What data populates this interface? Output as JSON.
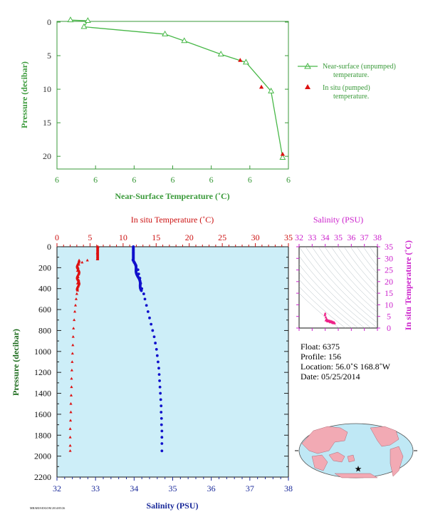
{
  "chart_data": [
    {
      "id": "near_surface",
      "type": "line",
      "xlabel": "Near-Surface Temperature (˚C)",
      "ylabel": "Pressure (decibar)",
      "x_tick_labels": [
        "6",
        "6",
        "6",
        "6",
        "6",
        "6",
        "6"
      ],
      "y_ticks": [
        0,
        5,
        10,
        15,
        20
      ],
      "ylim": [
        0,
        22
      ],
      "xlim": [
        0,
        6
      ],
      "y_reversed": true,
      "colors": {
        "axis": "#3a9a3a",
        "series": "#48b848",
        "insitu": "#dd1111"
      },
      "series": [
        {
          "name": "Near-surface (unpumped)\ntemperature.",
          "legend_lines": [
            "Near-surface (unpumped)",
            "temperature."
          ],
          "marker": "triangle-open",
          "x": [
            0.35,
            0.8,
            0.7,
            2.8,
            3.3,
            4.25,
            4.9,
            5.55,
            5.85
          ],
          "y": [
            -0.3,
            -0.2,
            0.7,
            1.8,
            2.8,
            4.8,
            6.0,
            10.3,
            20.2
          ]
        },
        {
          "name": "In situ (pumped)\ntemperature.",
          "legend_lines": [
            "In situ (pumped)",
            "temperature."
          ],
          "marker": "triangle-filled",
          "x": [
            4.75,
            5.3,
            5.85
          ],
          "y": [
            5.7,
            9.7,
            19.7
          ]
        }
      ]
    },
    {
      "id": "profile",
      "type": "scatter",
      "ylabel": "Pressure (decibar)",
      "y_ticks": [
        0,
        200,
        400,
        600,
        800,
        1000,
        1200,
        1400,
        1600,
        1800,
        2000,
        2200
      ],
      "ylim": [
        0,
        2200
      ],
      "y_reversed": true,
      "top_axis": {
        "label": "In situ Temperature (˚C)",
        "range": [
          0,
          35
        ],
        "ticks": [
          0,
          5,
          10,
          15,
          20,
          25,
          30,
          35
        ],
        "color": "#cc1111"
      },
      "bottom_axis": {
        "label": "Salinity (PSU)",
        "range": [
          32,
          38
        ],
        "ticks": [
          32,
          33,
          34,
          35,
          36,
          37,
          38
        ],
        "color": "#1a2a9a"
      },
      "background": "#cdeef8",
      "series": [
        {
          "name": "Temperature",
          "axis": "top",
          "color": "#dd1111",
          "marker": "triangle",
          "points": [
            [
              6.2,
              0
            ],
            [
              6.1,
              60
            ],
            [
              6.1,
              120
            ],
            [
              4.6,
              130
            ],
            [
              3.8,
              150
            ],
            [
              3.3,
              170
            ],
            [
              3.2,
              200
            ],
            [
              3.1,
              230
            ],
            [
              3.3,
              260
            ],
            [
              3.2,
              290
            ],
            [
              3.3,
              320
            ],
            [
              3.1,
              350
            ],
            [
              3.2,
              380
            ],
            [
              3.1,
              400
            ],
            [
              3.0,
              450
            ],
            [
              2.9,
              500
            ],
            [
              2.8,
              560
            ],
            [
              2.7,
              620
            ],
            [
              2.6,
              700
            ],
            [
              2.5,
              780
            ],
            [
              2.45,
              860
            ],
            [
              2.4,
              940
            ],
            [
              2.35,
              1020
            ],
            [
              2.3,
              1100
            ],
            [
              2.25,
              1180
            ],
            [
              2.2,
              1260
            ],
            [
              2.2,
              1340
            ],
            [
              2.15,
              1420
            ],
            [
              2.1,
              1500
            ],
            [
              2.1,
              1580
            ],
            [
              2.05,
              1660
            ],
            [
              2.0,
              1740
            ],
            [
              2.0,
              1820
            ],
            [
              2.0,
              1900
            ],
            [
              2.0,
              1950
            ]
          ]
        },
        {
          "name": "Salinity",
          "axis": "bottom",
          "color": "#1010cc",
          "marker": "circle",
          "points": [
            [
              33.98,
              0
            ],
            [
              33.98,
              60
            ],
            [
              33.98,
              120
            ],
            [
              34.0,
              150
            ],
            [
              34.05,
              180
            ],
            [
              34.1,
              220
            ],
            [
              34.12,
              260
            ],
            [
              34.15,
              300
            ],
            [
              34.17,
              350
            ],
            [
              34.2,
              400
            ],
            [
              34.25,
              450
            ],
            [
              34.28,
              500
            ],
            [
              34.32,
              560
            ],
            [
              34.36,
              620
            ],
            [
              34.4,
              680
            ],
            [
              34.44,
              740
            ],
            [
              34.48,
              800
            ],
            [
              34.52,
              860
            ],
            [
              34.55,
              920
            ],
            [
              34.58,
              980
            ],
            [
              34.6,
              1040
            ],
            [
              34.62,
              1100
            ],
            [
              34.64,
              1160
            ],
            [
              34.65,
              1220
            ],
            [
              34.66,
              1280
            ],
            [
              34.67,
              1340
            ],
            [
              34.68,
              1400
            ],
            [
              34.69,
              1460
            ],
            [
              34.7,
              1520
            ],
            [
              34.7,
              1580
            ],
            [
              34.71,
              1640
            ],
            [
              34.71,
              1700
            ],
            [
              34.72,
              1760
            ],
            [
              34.72,
              1820
            ],
            [
              34.72,
              1880
            ],
            [
              34.72,
              1950
            ]
          ]
        }
      ]
    },
    {
      "id": "ts_diagram",
      "type": "scatter",
      "top_axis": {
        "label": "Salinity (PSU)",
        "range": [
          32,
          38
        ],
        "ticks": [
          32,
          33,
          34,
          35,
          36,
          37,
          38
        ],
        "color": "#cc22cc"
      },
      "right_axis": {
        "label": "In situ Temperature (˚C)",
        "range": [
          0,
          35
        ],
        "ticks": [
          0,
          5,
          10,
          15,
          20,
          25,
          30,
          35
        ],
        "color": "#cc22cc"
      },
      "series": [
        {
          "name": "T-S",
          "color": "#ee2288",
          "points": [
            [
              34.0,
              6.2
            ],
            [
              33.98,
              5.5
            ],
            [
              34.05,
              4.6
            ],
            [
              34.1,
              3.8
            ],
            [
              34.15,
              3.3
            ],
            [
              34.2,
              3.2
            ],
            [
              34.3,
              3.1
            ],
            [
              34.4,
              3.0
            ],
            [
              34.5,
              2.8
            ],
            [
              34.6,
              2.6
            ],
            [
              34.7,
              2.3
            ],
            [
              34.72,
              2.0
            ]
          ]
        }
      ]
    }
  ],
  "float_info": {
    "float": "Float:  6375",
    "profile": "Profile:  156",
    "location": "Location:  56.0˚S  168.8˚W",
    "date": "Date:  05/25/2014"
  },
  "footer_text": "MBARI/SIOGOM 2014/05/26",
  "map": {
    "ocean_color": "#bfe8f5",
    "land_color": "#f2aab4",
    "marker": "star"
  }
}
